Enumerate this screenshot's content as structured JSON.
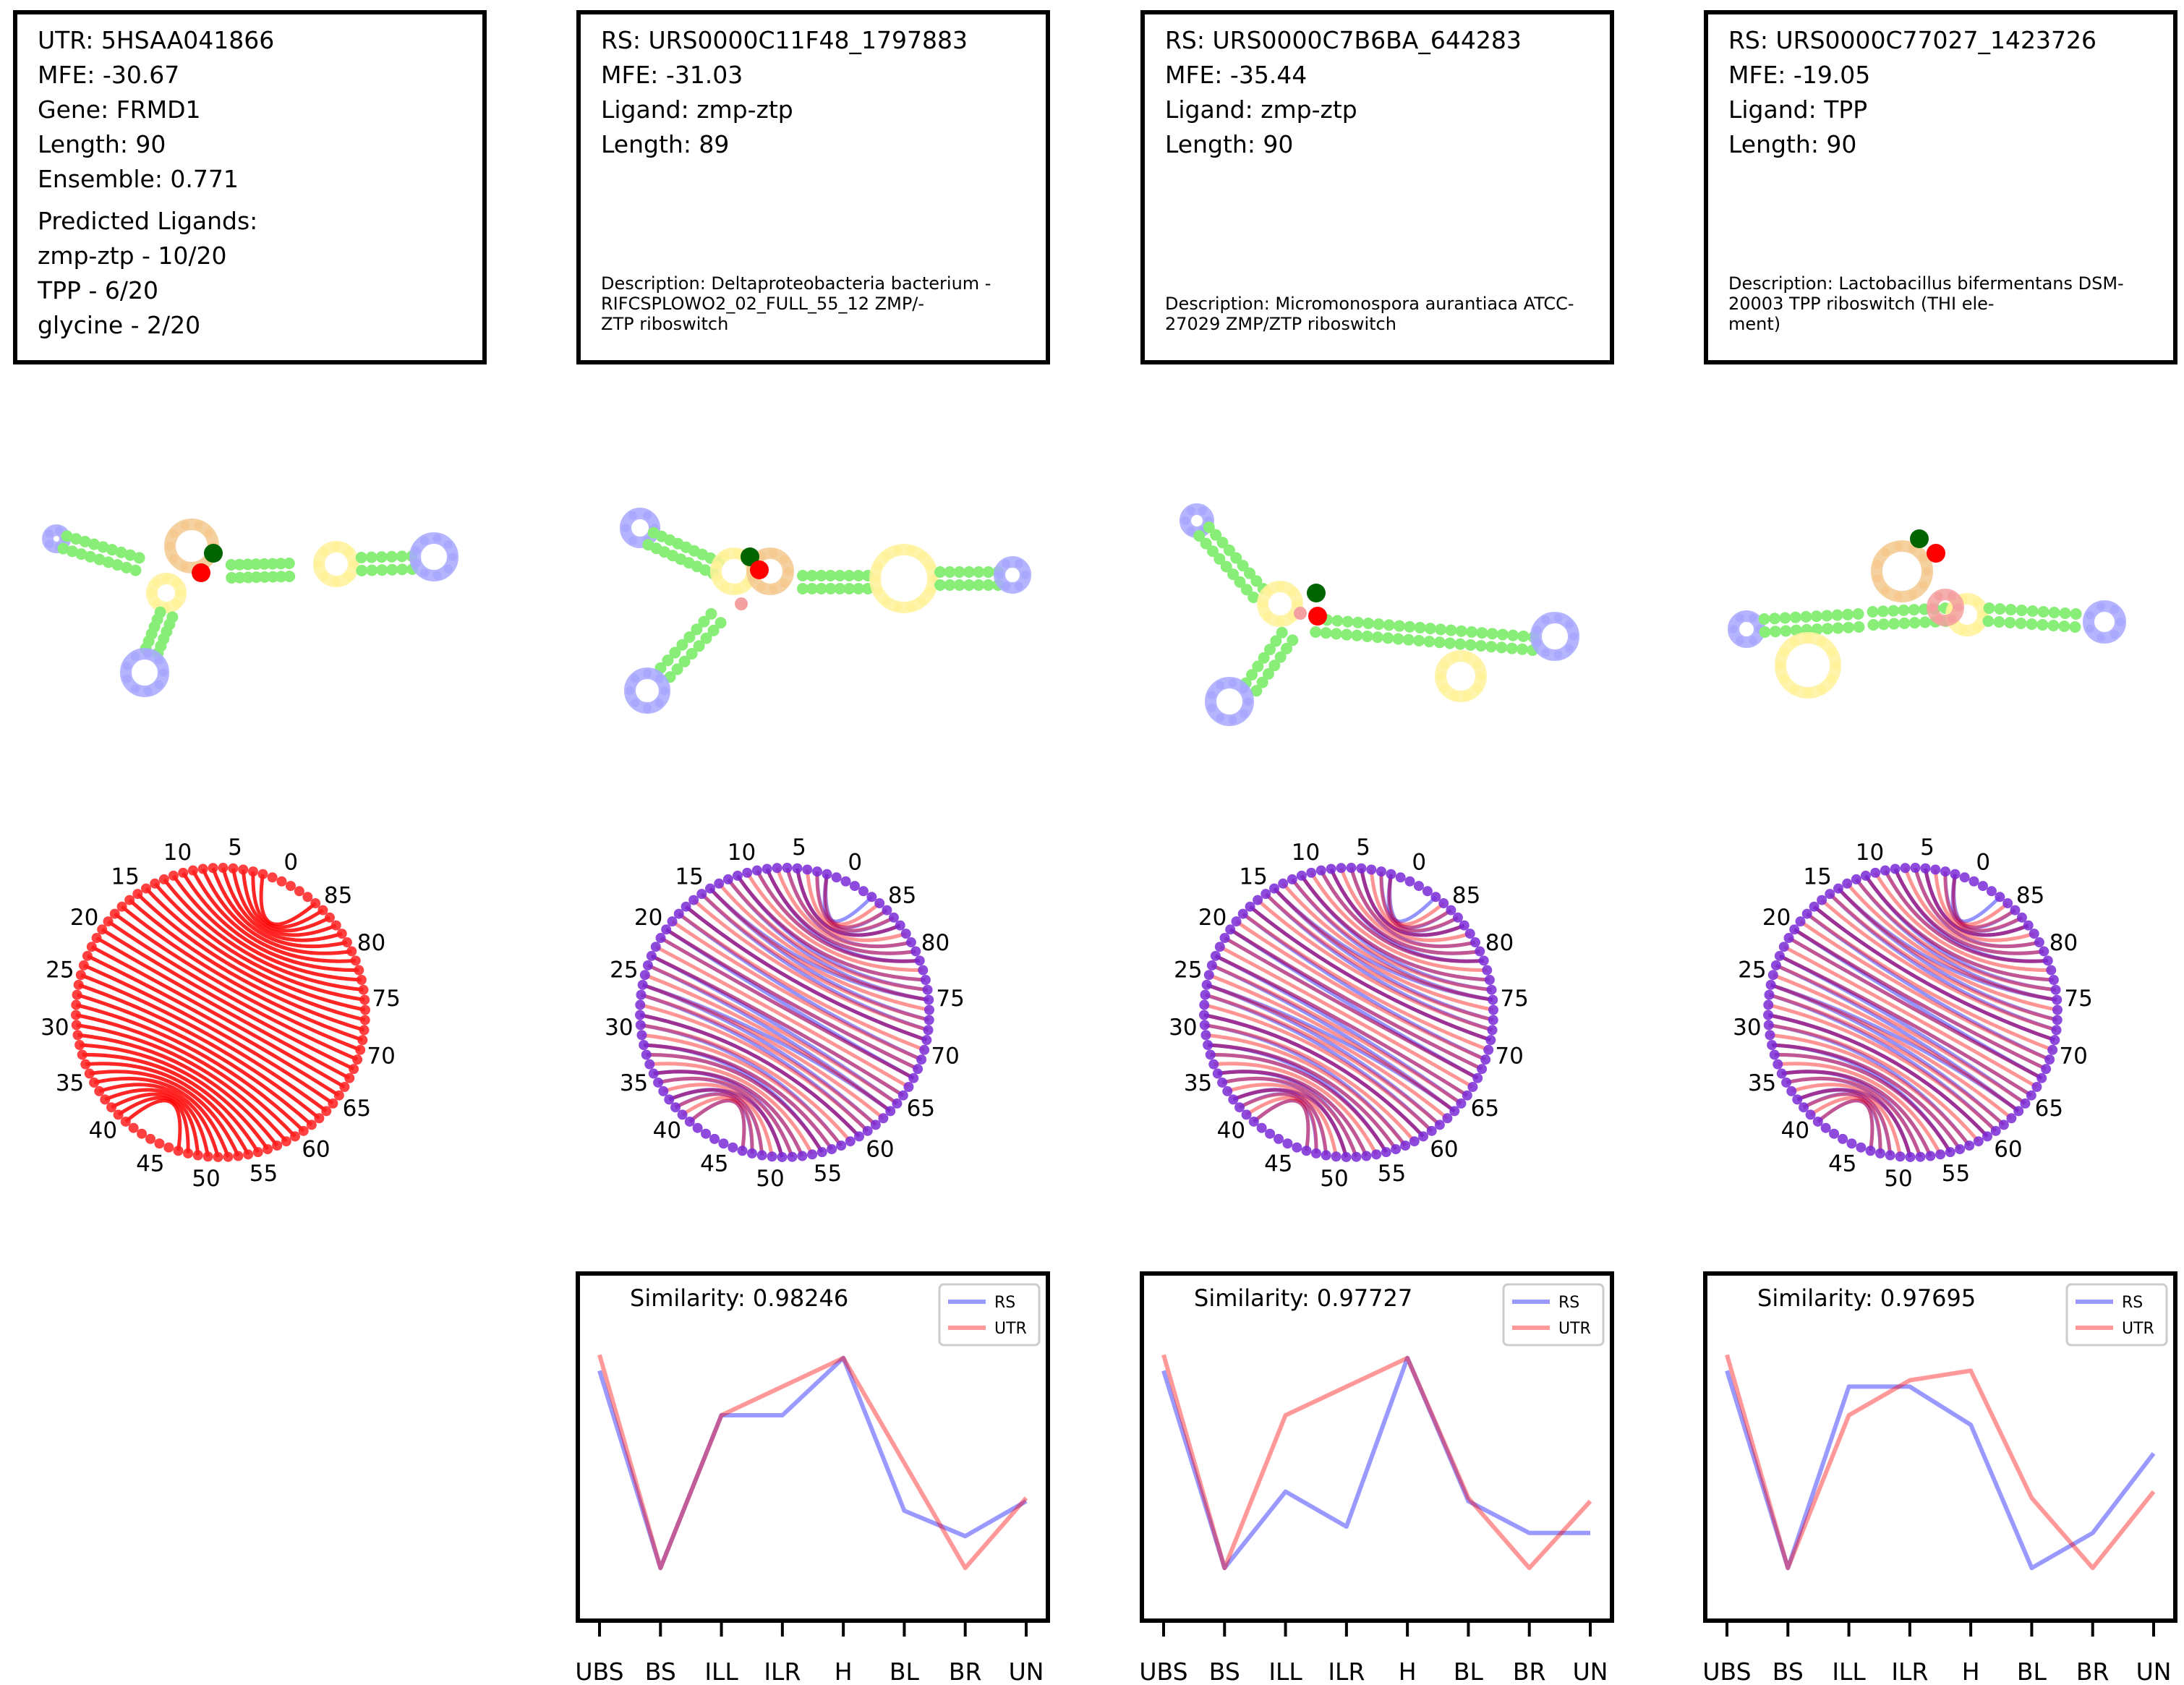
{
  "cards": [
    {
      "header": {
        "lines": [
          "UTR: 5HSAA041866",
          "MFE: -30.67",
          "Gene: FRMD1",
          "Length: 90",
          "Ensemble: 0.771"
        ],
        "predicted_title": "Predicted Ligands:",
        "predicted": [
          "zmp-ztp - 10/20",
          "TPP - 6/20",
          "glycine - 2/20"
        ],
        "description": ""
      },
      "arc_pairs": [
        [
          2,
          86
        ],
        [
          3,
          85
        ],
        [
          4,
          84
        ],
        [
          5,
          83
        ],
        [
          6,
          82
        ],
        [
          7,
          81
        ],
        [
          8,
          80
        ],
        [
          9,
          79
        ],
        [
          10,
          78
        ],
        [
          11,
          77
        ],
        [
          12,
          76
        ],
        [
          13,
          75
        ],
        [
          14,
          74
        ],
        [
          15,
          73
        ],
        [
          16,
          72
        ],
        [
          17,
          71
        ],
        [
          18,
          70
        ],
        [
          19,
          69
        ],
        [
          20,
          68
        ],
        [
          21,
          67
        ],
        [
          22,
          66
        ],
        [
          23,
          65
        ],
        [
          24,
          64
        ],
        [
          25,
          63
        ],
        [
          26,
          62
        ],
        [
          27,
          61
        ],
        [
          28,
          60
        ],
        [
          29,
          59
        ],
        [
          30,
          58
        ],
        [
          31,
          57
        ],
        [
          32,
          56
        ],
        [
          33,
          55
        ],
        [
          34,
          54
        ],
        [
          35,
          53
        ],
        [
          36,
          52
        ],
        [
          37,
          51
        ],
        [
          38,
          50
        ],
        [
          39,
          49
        ],
        [
          40,
          48
        ],
        [
          41,
          47
        ]
      ],
      "arc_series_colors": [
        "#ff0000"
      ]
    },
    {
      "header": {
        "lines": [
          "RS: URS0000C11F48_1797883",
          "MFE: -31.03",
          "Ligand: zmp-ztp",
          "Length: 89"
        ],
        "predicted": [],
        "description": "Description: Deltaproteobacteria bacterium -\nRIFCSPLOWO2_02_FULL_55_12 ZMP/-\nZTP riboswitch"
      },
      "arc_series_colors": [
        "#0000ff",
        "#ff0000"
      ],
      "profile": {
        "similarity_label": "Similarity: 0.98246",
        "chart_data": {
          "type": "line",
          "categories": [
            "UBS",
            "BS",
            "ILL",
            "ILR",
            "H",
            "BL",
            "BR",
            "UN"
          ],
          "series": [
            {
              "name": "RS",
              "color": "#0000ff",
              "values": [
                0.74,
                0.12,
                0.6,
                0.6,
                0.78,
                0.3,
                0.22,
                0.33
              ]
            },
            {
              "name": "UTR",
              "color": "#ff0000",
              "values": [
                0.79,
                0.12,
                0.6,
                0.69,
                0.78,
                0.45,
                0.12,
                0.34
              ]
            }
          ],
          "ylim": [
            0,
            1
          ],
          "legend": "top-right"
        }
      }
    },
    {
      "header": {
        "lines": [
          "RS: URS0000C7B6BA_644283",
          "MFE: -35.44",
          "Ligand: zmp-ztp",
          "Length: 90"
        ],
        "predicted": [],
        "description": "Description: Micromonospora aurantiaca ATCC-\n 27029 ZMP/ZTP riboswitch"
      },
      "arc_series_colors": [
        "#0000ff",
        "#ff0000"
      ],
      "profile": {
        "similarity_label": "Similarity: 0.97727",
        "chart_data": {
          "type": "line",
          "categories": [
            "UBS",
            "BS",
            "ILL",
            "ILR",
            "H",
            "BL",
            "BR",
            "UN"
          ],
          "series": [
            {
              "name": "RS",
              "color": "#0000ff",
              "values": [
                0.74,
                0.12,
                0.36,
                0.25,
                0.78,
                0.33,
                0.23,
                0.23
              ]
            },
            {
              "name": "UTR",
              "color": "#ff0000",
              "values": [
                0.79,
                0.12,
                0.6,
                0.69,
                0.78,
                0.34,
                0.12,
                0.33
              ]
            }
          ],
          "ylim": [
            0,
            1
          ],
          "legend": "top-right"
        }
      }
    },
    {
      "header": {
        "lines": [
          "RS: URS0000C77027_1423726",
          "MFE: -19.05",
          "Ligand: TPP",
          "Length: 90"
        ],
        "predicted": [],
        "description": "Description: Lactobacillus bifermentans DSM-\n 20003 TPP riboswitch (THI ele-\nment)"
      },
      "arc_series_colors": [
        "#0000ff",
        "#ff0000"
      ],
      "profile": {
        "similarity_label": "Similarity: 0.97695",
        "chart_data": {
          "type": "line",
          "categories": [
            "UBS",
            "BS",
            "ILL",
            "ILR",
            "H",
            "BL",
            "BR",
            "UN"
          ],
          "series": [
            {
              "name": "RS",
              "color": "#0000ff",
              "values": [
                0.74,
                0.12,
                0.69,
                0.69,
                0.57,
                0.12,
                0.23,
                0.48
              ]
            },
            {
              "name": "UTR",
              "color": "#ff0000",
              "values": [
                0.79,
                0.12,
                0.6,
                0.71,
                0.74,
                0.34,
                0.12,
                0.36
              ]
            }
          ],
          "ylim": [
            0,
            1
          ],
          "legend": "top-right"
        }
      }
    }
  ],
  "arc_tick_labels": [
    "0",
    "5",
    "10",
    "15",
    "20",
    "25",
    "30",
    "35",
    "40",
    "45",
    "50",
    "55",
    "60",
    "65",
    "70",
    "75",
    "80",
    "85"
  ],
  "structure_colors": {
    "stem": "#88ee77",
    "hairpin": "#a8a8ff",
    "interior": "#fff29a",
    "multiloop": "#f5c98f",
    "unpaired": "#f5a0a0",
    "start": "#006400",
    "end": "#ff0000"
  }
}
